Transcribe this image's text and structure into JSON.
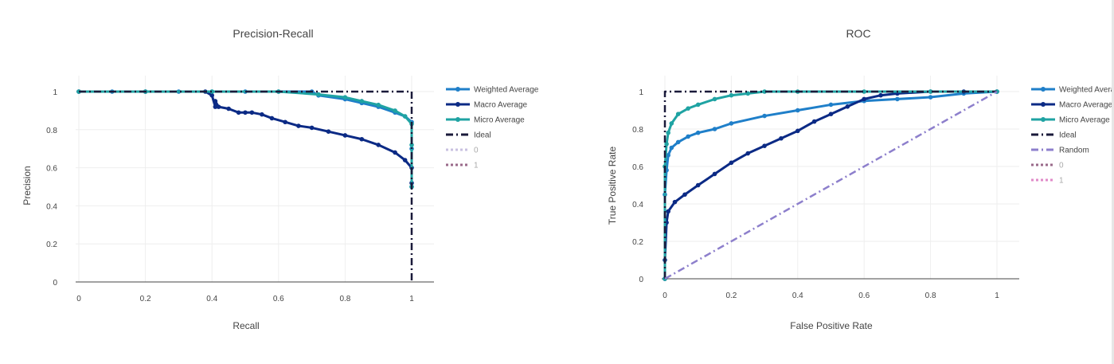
{
  "colors": {
    "weighted": "#1f7fc9",
    "macro": "#0b2a85",
    "micro": "#1fa3a3",
    "ideal": "#1a1a3a",
    "random": "#8d7fcc",
    "class0_pr": "#c8c0e0",
    "class1_pr": "#9a6a8a",
    "class0_roc": "#9a6a8a",
    "class1_roc": "#e08ac8",
    "grid": "#eeeeee",
    "axis": "#444444"
  },
  "chart_data": [
    {
      "type": "line",
      "title": "Precision-Recall",
      "xlabel": "Recall",
      "ylabel": "Precision",
      "xlim": [
        0,
        1
      ],
      "ylim": [
        0,
        1
      ],
      "x_ticks": [
        "0",
        "0.2",
        "0.4",
        "0.6",
        "0.8",
        "1"
      ],
      "y_ticks": [
        "0",
        "0.2",
        "0.4",
        "0.6",
        "0.8",
        "1"
      ],
      "grid": true,
      "legend_position": "right",
      "legend": [
        "Weighted Average",
        "Macro Average",
        "Micro Average",
        "Ideal",
        "0",
        "1"
      ],
      "series": [
        {
          "name": "Weighted Average",
          "style": "line-marker",
          "color_key": "weighted",
          "x": [
            0,
            0.1,
            0.2,
            0.3,
            0.4,
            0.5,
            0.6,
            0.7,
            0.72,
            0.8,
            0.85,
            0.9,
            0.95,
            0.98,
            1.0,
            1.0,
            1.0
          ],
          "y": [
            1,
            1,
            1,
            1,
            1,
            1,
            1,
            1,
            0.98,
            0.96,
            0.94,
            0.92,
            0.89,
            0.87,
            0.84,
            0.7,
            0.5
          ]
        },
        {
          "name": "Macro Average",
          "style": "line-marker",
          "color_key": "macro",
          "x": [
            0,
            0.2,
            0.38,
            0.4,
            0.41,
            0.41,
            0.42,
            0.45,
            0.48,
            0.5,
            0.52,
            0.55,
            0.58,
            0.62,
            0.66,
            0.7,
            0.75,
            0.8,
            0.85,
            0.9,
            0.95,
            0.98,
            1.0,
            1.0
          ],
          "y": [
            1,
            1,
            1,
            0.98,
            0.92,
            0.95,
            0.92,
            0.91,
            0.89,
            0.89,
            0.89,
            0.88,
            0.86,
            0.84,
            0.82,
            0.81,
            0.79,
            0.77,
            0.75,
            0.72,
            0.68,
            0.64,
            0.6,
            0.52
          ]
        },
        {
          "name": "Micro Average",
          "style": "line-marker",
          "color_key": "micro",
          "x": [
            0,
            0.2,
            0.4,
            0.6,
            0.72,
            0.8,
            0.85,
            0.9,
            0.95,
            0.98,
            1.0,
            1.0,
            1.0
          ],
          "y": [
            1,
            1,
            1,
            1,
            0.985,
            0.97,
            0.95,
            0.93,
            0.9,
            0.87,
            0.83,
            0.72,
            0.5
          ]
        },
        {
          "name": "Ideal",
          "style": "dashdot",
          "color_key": "ideal",
          "x": [
            0,
            1,
            1
          ],
          "y": [
            1,
            1,
            0
          ]
        }
      ]
    },
    {
      "type": "line",
      "title": "ROC",
      "xlabel": "False Positive Rate",
      "ylabel": "True Positive Rate",
      "xlim": [
        0,
        1
      ],
      "ylim": [
        0,
        1
      ],
      "x_ticks": [
        "0",
        "0.2",
        "0.4",
        "0.6",
        "0.8",
        "1"
      ],
      "y_ticks": [
        "0",
        "0.2",
        "0.4",
        "0.6",
        "0.8",
        "1"
      ],
      "grid": true,
      "legend_position": "right",
      "legend": [
        "Weighted Average",
        "Macro Average",
        "Micro Average",
        "Ideal",
        "Random",
        "0",
        "1"
      ],
      "series": [
        {
          "name": "Weighted Average",
          "style": "line-marker",
          "color_key": "weighted",
          "x": [
            0,
            0,
            0.005,
            0.01,
            0.02,
            0.04,
            0.07,
            0.1,
            0.15,
            0.2,
            0.3,
            0.4,
            0.5,
            0.6,
            0.7,
            0.8,
            0.9,
            1.0
          ],
          "y": [
            0,
            0.45,
            0.58,
            0.66,
            0.7,
            0.73,
            0.76,
            0.78,
            0.8,
            0.83,
            0.87,
            0.9,
            0.93,
            0.95,
            0.96,
            0.97,
            0.99,
            1.0
          ]
        },
        {
          "name": "Macro Average",
          "style": "line-marker",
          "color_key": "macro",
          "x": [
            0,
            0,
            0.005,
            0.01,
            0.03,
            0.06,
            0.1,
            0.15,
            0.2,
            0.25,
            0.3,
            0.35,
            0.4,
            0.45,
            0.5,
            0.55,
            0.6,
            0.65,
            0.7,
            0.8,
            0.9,
            1.0
          ],
          "y": [
            0,
            0.1,
            0.3,
            0.36,
            0.41,
            0.45,
            0.5,
            0.56,
            0.62,
            0.67,
            0.71,
            0.75,
            0.79,
            0.84,
            0.88,
            0.92,
            0.96,
            0.98,
            0.99,
            1.0,
            1.0,
            1.0
          ]
        },
        {
          "name": "Micro Average",
          "style": "line-marker",
          "color_key": "micro",
          "x": [
            0,
            0,
            0.005,
            0.01,
            0.02,
            0.04,
            0.07,
            0.1,
            0.15,
            0.2,
            0.25,
            0.3,
            0.4,
            0.6,
            0.8,
            1.0
          ],
          "y": [
            0,
            0.6,
            0.72,
            0.78,
            0.83,
            0.88,
            0.91,
            0.93,
            0.96,
            0.98,
            0.99,
            1.0,
            1.0,
            1.0,
            1.0,
            1.0
          ]
        },
        {
          "name": "Ideal",
          "style": "dashdot",
          "color_key": "ideal",
          "x": [
            0,
            0,
            1
          ],
          "y": [
            0,
            1,
            1
          ]
        },
        {
          "name": "Random",
          "style": "dashdot",
          "color_key": "random",
          "x": [
            0,
            1
          ],
          "y": [
            0,
            1
          ]
        }
      ]
    }
  ]
}
